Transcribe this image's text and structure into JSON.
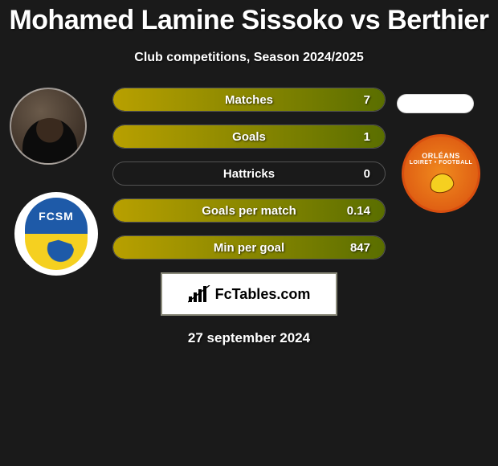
{
  "title": "Mohamed Lamine Sissoko vs Berthier",
  "subtitle": "Club competitions, Season 2024/2025",
  "date": "27 september 2024",
  "site_name": "FcTables.com",
  "colors": {
    "background": "#1a1a1a",
    "row_border": "rgba(255,255,255,0.25)",
    "fill_gradient_from": "#b8a000",
    "fill_gradient_to": "#5a6e00",
    "text": "#ffffff"
  },
  "left_badges": {
    "player_photo_alt": "Mohamed Lamine Sissoko",
    "club_badge": {
      "name": "FCSM",
      "top_color": "#1e5aa8",
      "bottom_color": "#f5d020",
      "text": "FCSM"
    }
  },
  "right_badges": {
    "placeholder_pill_color": "#ffffff",
    "club_badge": {
      "name": "Orleans Loiret Football",
      "bg_from": "#f08a1e",
      "bg_to": "#d94f0f",
      "line1": "ORLÉANS",
      "line2": "LOIRET • FOOTBALL"
    }
  },
  "stats": [
    {
      "label": "Matches",
      "value": "7",
      "fill_pct": 100
    },
    {
      "label": "Goals",
      "value": "1",
      "fill_pct": 100
    },
    {
      "label": "Hattricks",
      "value": "0",
      "fill_pct": 0
    },
    {
      "label": "Goals per match",
      "value": "0.14",
      "fill_pct": 100
    },
    {
      "label": "Min per goal",
      "value": "847",
      "fill_pct": 100
    }
  ]
}
